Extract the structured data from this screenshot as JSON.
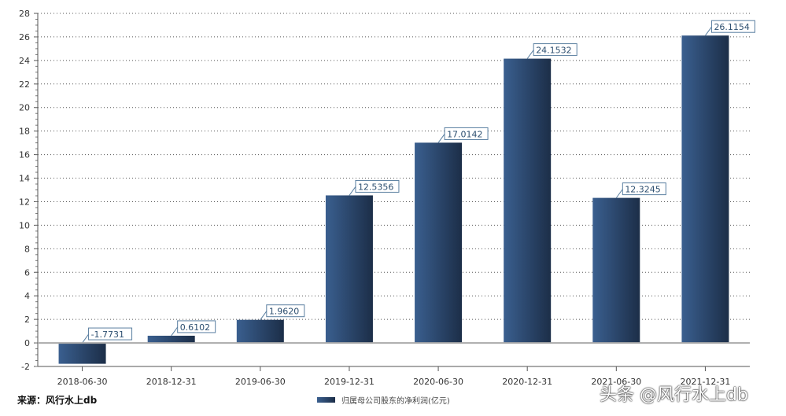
{
  "chart_data": {
    "type": "bar",
    "categories": [
      "2018-06-30",
      "2018-12-31",
      "2019-06-30",
      "2019-12-31",
      "2020-06-30",
      "2020-12-31",
      "2021-06-30",
      "2021-12-31"
    ],
    "series": [
      {
        "name": "归属母公司股东的净利润(亿元)",
        "values": [
          -1.7731,
          0.6102,
          1.962,
          12.5356,
          17.0142,
          24.1532,
          12.3245,
          26.1154
        ]
      }
    ],
    "data_labels": [
      "-1.7731",
      "0.6102",
      "1.9620",
      "12.5356",
      "17.0142",
      "24.1532",
      "12.3245",
      "26.1154"
    ],
    "ylim": [
      -2,
      28
    ],
    "yticks": [
      -2,
      0,
      2,
      4,
      6,
      8,
      10,
      12,
      14,
      16,
      18,
      20,
      22,
      24,
      26,
      28
    ],
    "grid": "horizontal dotted",
    "legend_position": "bottom",
    "colors": {
      "bar_light": "#3a5f8f",
      "bar_dark": "#1c2e48",
      "label_border": "#5a7fa0"
    }
  },
  "source": "来源：风行水上db",
  "watermark": "头条 @风行水上db"
}
